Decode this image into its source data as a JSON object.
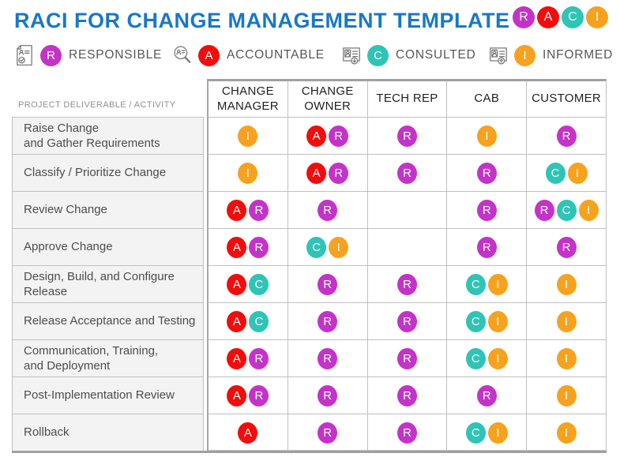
{
  "title": "RACI FOR CHANGE MANAGEMENT TEMPLATE",
  "logo_letters": [
    "R",
    "A",
    "C",
    "I"
  ],
  "colors": {
    "title": "#1778C8",
    "badge_R": "#C433C9",
    "badge_A": "#F20D0D",
    "badge_C": "#2EC4B6",
    "badge_I": "#F7A21E"
  },
  "legend": {
    "items": [
      {
        "key": "R",
        "label": "RESPONSIBLE",
        "icon": "document-check-icon"
      },
      {
        "key": "A",
        "label": "ACCOUNTABLE",
        "icon": "search-person-icon"
      },
      {
        "key": "C",
        "label": "CONSULTED",
        "icon": "id-card-download-icon"
      },
      {
        "key": "I",
        "label": "INFORMED",
        "icon": "id-card-upload-icon"
      }
    ]
  },
  "table": {
    "corner_header": "PROJECT DELIVERABLE / ACTIVITY",
    "columns": [
      "CHANGE MANAGER",
      "CHANGE OWNER",
      "TECH REP",
      "CAB",
      "CUSTOMER"
    ],
    "rows": [
      {
        "activity": "Raise Change\nand Gather Requirements",
        "cells": [
          [
            "I"
          ],
          [
            "A",
            "R"
          ],
          [
            "R"
          ],
          [
            "I"
          ],
          [
            "R"
          ]
        ]
      },
      {
        "activity": "Classify / Prioritize Change",
        "cells": [
          [
            "I"
          ],
          [
            "A",
            "R"
          ],
          [
            "R"
          ],
          [
            "R"
          ],
          [
            "C",
            "I"
          ]
        ]
      },
      {
        "activity": "Review Change",
        "cells": [
          [
            "A",
            "R"
          ],
          [
            "R"
          ],
          [],
          [
            "R"
          ],
          [
            "R",
            "C",
            "I"
          ]
        ]
      },
      {
        "activity": "Approve Change",
        "cells": [
          [
            "A",
            "R"
          ],
          [
            "C",
            "I"
          ],
          [],
          [
            "R"
          ],
          [
            "R"
          ]
        ]
      },
      {
        "activity": "Design, Build, and Configure\nRelease",
        "cells": [
          [
            "A",
            "C"
          ],
          [
            "R"
          ],
          [
            "R"
          ],
          [
            "C",
            "I"
          ],
          [
            "I"
          ]
        ]
      },
      {
        "activity": "Release Acceptance and Testing",
        "cells": [
          [
            "A",
            "C"
          ],
          [
            "R"
          ],
          [
            "R"
          ],
          [
            "C",
            "I"
          ],
          [
            "I"
          ]
        ]
      },
      {
        "activity": "Communication, Training,\nand Deployment",
        "cells": [
          [
            "A",
            "R"
          ],
          [
            "R"
          ],
          [
            "R"
          ],
          [
            "C",
            "I"
          ],
          [
            "I"
          ]
        ]
      },
      {
        "activity": "Post-Implementation Review",
        "cells": [
          [
            "A",
            "R"
          ],
          [
            "R"
          ],
          [
            "R"
          ],
          [
            "R"
          ],
          [
            "I"
          ]
        ]
      },
      {
        "activity": "Rollback",
        "cells": [
          [
            "A"
          ],
          [
            "R"
          ],
          [
            "R"
          ],
          [
            "C",
            "I"
          ],
          [
            "I"
          ]
        ]
      }
    ]
  }
}
